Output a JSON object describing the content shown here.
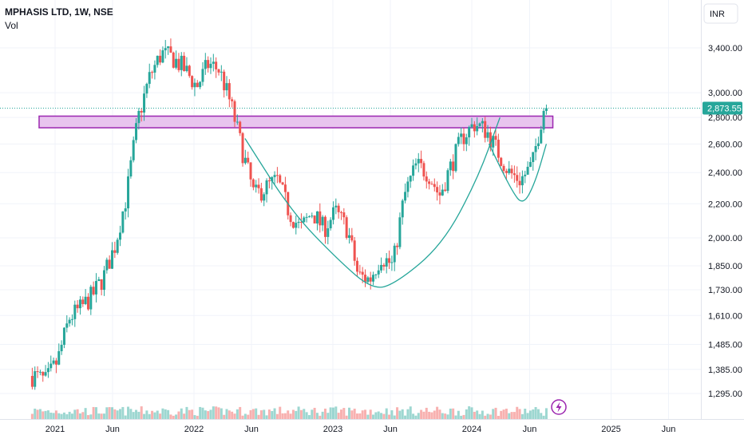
{
  "header": {
    "title": "MPHASIS LTD, 1W, NSE",
    "indicator": "Vol"
  },
  "currency_button": "INR",
  "chart_data": {
    "type": "candlestick",
    "symbol": "MPHASIS LTD",
    "interval": "1W",
    "exchange": "NSE",
    "last_price": 2873.55,
    "last_price_label": "2,873.55",
    "y_scale": "log",
    "y_tick_labels": [
      "3,400.00",
      "3,000.00",
      "2,800.00",
      "2,600.00",
      "2,400.00",
      "2,200.00",
      "2,000.00",
      "1,850.00",
      "1,730.00",
      "1,610.00",
      "1,485.00",
      "1,385.00",
      "1,295.00"
    ],
    "y_tick_values": [
      3400,
      3000,
      2800,
      2600,
      2400,
      2200,
      2000,
      1850,
      1730,
      1610,
      1485,
      1385,
      1295
    ],
    "x_tick_labels": [
      "2021",
      "Jun",
      "2022",
      "Jun",
      "2023",
      "Jun",
      "2024",
      "Jun",
      "2025",
      "Jun"
    ],
    "x_tick_dates": [
      "2021-01",
      "2021-06",
      "2022-01",
      "2022-06",
      "2023-01",
      "2023-06",
      "2024-01",
      "2024-06",
      "2025-01",
      "2025-06"
    ],
    "price_path": [
      [
        "2020-11",
        1360
      ],
      [
        "2020-12",
        1340
      ],
      [
        "2021-01",
        1420
      ],
      [
        "2021-02",
        1600
      ],
      [
        "2021-03",
        1640
      ],
      [
        "2021-04",
        1700
      ],
      [
        "2021-05",
        1790
      ],
      [
        "2021-06",
        1960
      ],
      [
        "2021-07",
        2250
      ],
      [
        "2021-08",
        2800
      ],
      [
        "2021-09",
        3150
      ],
      [
        "2021-10",
        3350
      ],
      [
        "2021-11",
        3300
      ],
      [
        "2021-12",
        3200
      ],
      [
        "2022-01",
        3050
      ],
      [
        "2022-02",
        3250
      ],
      [
        "2022-03",
        3200
      ],
      [
        "2022-04",
        2900
      ],
      [
        "2022-05",
        2550
      ],
      [
        "2022-06",
        2250
      ],
      [
        "2022-07",
        2300
      ],
      [
        "2022-08",
        2350
      ],
      [
        "2022-09",
        2150
      ],
      [
        "2022-10",
        2050
      ],
      [
        "2022-11",
        2150
      ],
      [
        "2022-12",
        2050
      ],
      [
        "2023-01",
        2150
      ],
      [
        "2023-02",
        2050
      ],
      [
        "2023-03",
        1800
      ],
      [
        "2023-04",
        1780
      ],
      [
        "2023-05",
        1900
      ],
      [
        "2023-06",
        1850
      ],
      [
        "2023-07",
        2250
      ],
      [
        "2023-08",
        2450
      ],
      [
        "2023-09",
        2400
      ],
      [
        "2023-10",
        2250
      ],
      [
        "2023-11",
        2450
      ],
      [
        "2023-12",
        2650
      ],
      [
        "2024-01",
        2750
      ],
      [
        "2024-02",
        2700
      ],
      [
        "2024-03",
        2550
      ],
      [
        "2024-04",
        2400
      ],
      [
        "2024-05",
        2350
      ],
      [
        "2024-06",
        2450
      ],
      [
        "2024-07",
        2873.55
      ]
    ],
    "resistance_zone": {
      "low": 2720,
      "high": 2810,
      "from": "2020-11",
      "to": "2024-08"
    },
    "cup_curve": [
      [
        "2022-05",
        2640
      ],
      [
        "2022-09",
        2150
      ],
      [
        "2023-01",
        1880
      ],
      [
        "2023-04",
        1730
      ],
      [
        "2023-06",
        1760
      ],
      [
        "2023-10",
        1960
      ],
      [
        "2024-01",
        2350
      ],
      [
        "2024-03",
        2800
      ]
    ],
    "handle_curve": [
      [
        "2024-02",
        2600
      ],
      [
        "2024-04",
        2280
      ],
      [
        "2024-05",
        2190
      ],
      [
        "2024-06",
        2330
      ],
      [
        "2024-07",
        2600
      ]
    ],
    "colors": {
      "up": "#26a69a",
      "down": "#ef5350",
      "zone_fill": "#e8c4ee",
      "zone_border": "#9c27b0",
      "curve": "#26a69a",
      "price_tag": "#26a69a"
    }
  }
}
